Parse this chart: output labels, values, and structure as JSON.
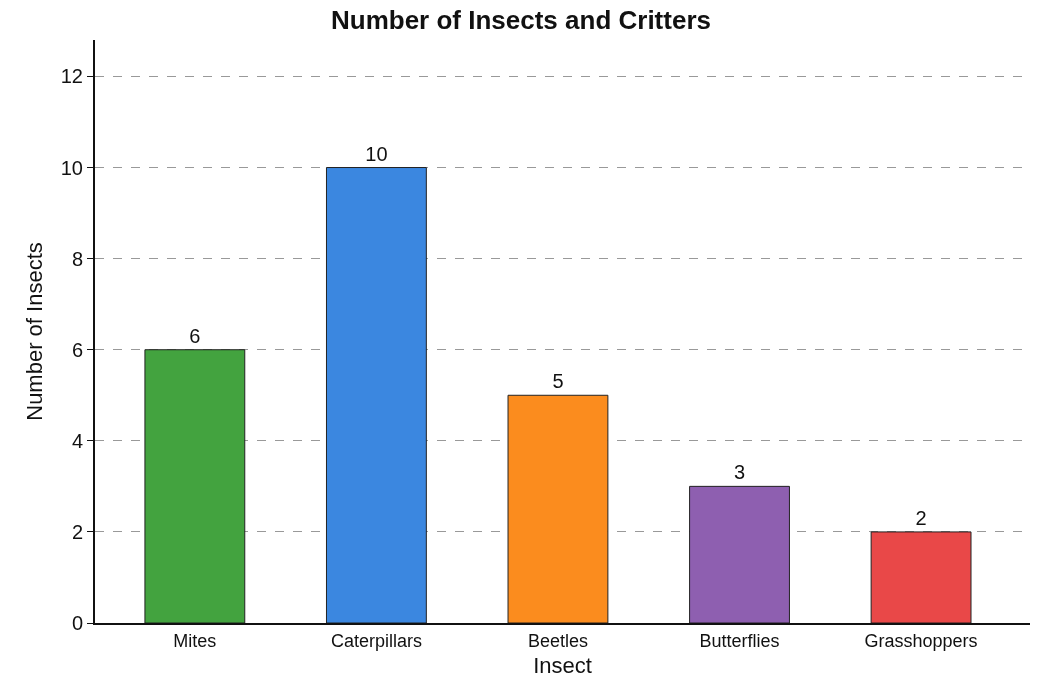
{
  "chart_data": {
    "type": "bar",
    "title": "Number of Insects and Critters",
    "xlabel": "Insect",
    "ylabel": "Number of Insects",
    "categories": [
      "Mites",
      "Caterpillars",
      "Beetles",
      "Butterflies",
      "Grasshoppers"
    ],
    "values": [
      6,
      10,
      5,
      3,
      2
    ],
    "colors": [
      "#43a33f",
      "#3b87e0",
      "#fb8c1e",
      "#8e5fb0",
      "#e94848"
    ],
    "ylim": [
      0,
      12.8
    ],
    "yticks": [
      0,
      2,
      4,
      6,
      8,
      10,
      12
    ],
    "grid": "y",
    "data_labels": true
  }
}
